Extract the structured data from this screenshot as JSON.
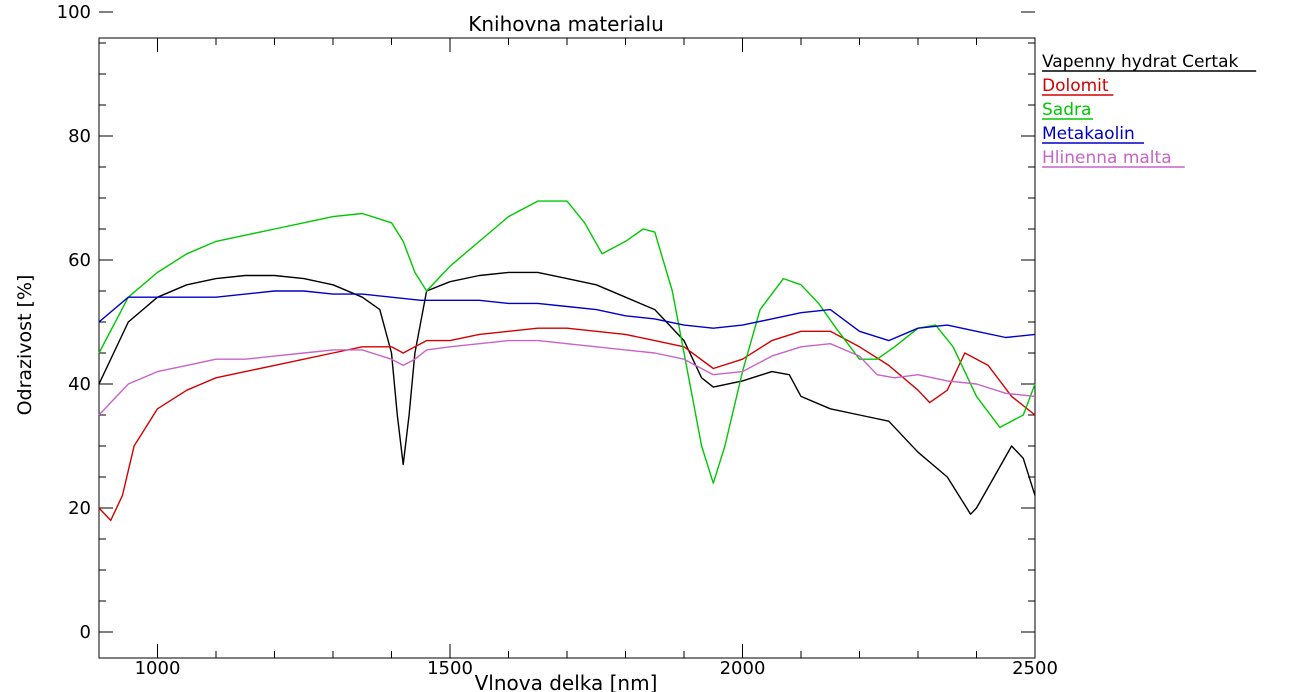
{
  "chart_data": {
    "type": "line",
    "title": "Knihovna materialu",
    "xlabel": "Vlnova delka [nm]",
    "ylabel": "Odrazivost [%]",
    "xlim": [
      900,
      2500
    ],
    "ylim": [
      0,
      100
    ],
    "x_ticks": [
      1000,
      1500,
      2000,
      2500
    ],
    "y_ticks": [
      0,
      20,
      40,
      60,
      80,
      100
    ],
    "grid": false,
    "legend_position": "outside-top-right",
    "series": [
      {
        "name": "Vapenny hydrat Certak",
        "color": "#000000",
        "x": [
          900,
          950,
          1000,
          1050,
          1100,
          1150,
          1200,
          1250,
          1300,
          1350,
          1380,
          1400,
          1410,
          1420,
          1430,
          1440,
          1460,
          1500,
          1550,
          1600,
          1650,
          1700,
          1750,
          1800,
          1850,
          1900,
          1930,
          1950,
          2000,
          2050,
          2080,
          2100,
          2150,
          2200,
          2250,
          2280,
          2300,
          2350,
          2390,
          2400,
          2430,
          2460,
          2480,
          2500
        ],
        "y": [
          40,
          50,
          54,
          56,
          57,
          57.5,
          57.5,
          57,
          56,
          54,
          52,
          45,
          35,
          27,
          35,
          45,
          55,
          56.5,
          57.5,
          58,
          58,
          57,
          56,
          54,
          52,
          47,
          41,
          39.5,
          40.5,
          42,
          41.5,
          38,
          36,
          35,
          34,
          31,
          29,
          25,
          19,
          20,
          25,
          30,
          28,
          22
        ]
      },
      {
        "name": "Dolomit",
        "color": "#d40000",
        "x": [
          900,
          920,
          940,
          960,
          1000,
          1050,
          1100,
          1150,
          1200,
          1250,
          1300,
          1350,
          1400,
          1420,
          1440,
          1460,
          1500,
          1550,
          1600,
          1650,
          1700,
          1750,
          1800,
          1850,
          1900,
          1950,
          2000,
          2050,
          2100,
          2150,
          2200,
          2250,
          2300,
          2320,
          2350,
          2380,
          2420,
          2460,
          2500
        ],
        "y": [
          20,
          18,
          22,
          30,
          36,
          39,
          41,
          42,
          43,
          44,
          45,
          46,
          46,
          45,
          46,
          47,
          47,
          48,
          48.5,
          49,
          49,
          48.5,
          48,
          47,
          46,
          42.5,
          44,
          47,
          48.5,
          48.5,
          46,
          43,
          39,
          37,
          39,
          45,
          43,
          38,
          35
        ]
      },
      {
        "name": "Sadra",
        "color": "#00c800",
        "x": [
          900,
          950,
          1000,
          1050,
          1100,
          1150,
          1200,
          1250,
          1300,
          1350,
          1400,
          1420,
          1440,
          1460,
          1480,
          1500,
          1550,
          1600,
          1650,
          1700,
          1730,
          1760,
          1800,
          1830,
          1850,
          1880,
          1910,
          1930,
          1950,
          1970,
          2000,
          2030,
          2070,
          2100,
          2130,
          2160,
          2200,
          2230,
          2260,
          2300,
          2330,
          2360,
          2400,
          2440,
          2480,
          2500
        ],
        "y": [
          45,
          54,
          58,
          61,
          63,
          64,
          65,
          66,
          67,
          67.5,
          66,
          63,
          58,
          55,
          57,
          59,
          63,
          67,
          69.5,
          69.5,
          66,
          61,
          63,
          65,
          64.5,
          55,
          40,
          30,
          24,
          30,
          42,
          52,
          57,
          56,
          53,
          49,
          44,
          44,
          46,
          49,
          49.5,
          46,
          38,
          33,
          35,
          40
        ]
      },
      {
        "name": "Metakaolin",
        "color": "#0000c8",
        "x": [
          900,
          950,
          1000,
          1050,
          1100,
          1150,
          1200,
          1250,
          1300,
          1350,
          1400,
          1450,
          1500,
          1550,
          1600,
          1650,
          1700,
          1750,
          1800,
          1850,
          1900,
          1950,
          2000,
          2050,
          2100,
          2150,
          2200,
          2250,
          2300,
          2350,
          2400,
          2450,
          2500
        ],
        "y": [
          50,
          54,
          54,
          54,
          54,
          54.5,
          55,
          55,
          54.5,
          54.5,
          54,
          53.5,
          53.5,
          53.5,
          53,
          53,
          52.5,
          52,
          51,
          50.5,
          49.5,
          49,
          49.5,
          50.5,
          51.5,
          52,
          48.5,
          47,
          49,
          49.5,
          48.5,
          47.5,
          48
        ]
      },
      {
        "name": "Hlinenna malta",
        "color": "#c864c8",
        "x": [
          900,
          950,
          1000,
          1050,
          1100,
          1150,
          1200,
          1250,
          1300,
          1350,
          1400,
          1420,
          1440,
          1460,
          1500,
          1550,
          1600,
          1650,
          1700,
          1750,
          1800,
          1850,
          1900,
          1950,
          2000,
          2050,
          2100,
          2150,
          2200,
          2230,
          2260,
          2300,
          2350,
          2400,
          2450,
          2500
        ],
        "y": [
          35,
          40,
          42,
          43,
          44,
          44,
          44.5,
          45,
          45.5,
          45.5,
          44,
          43,
          44,
          45.5,
          46,
          46.5,
          47,
          47,
          46.5,
          46,
          45.5,
          45,
          44,
          41.5,
          42,
          44.5,
          46,
          46.5,
          44.5,
          41.5,
          41,
          41.5,
          40.5,
          40,
          38.5,
          38
        ]
      }
    ]
  }
}
